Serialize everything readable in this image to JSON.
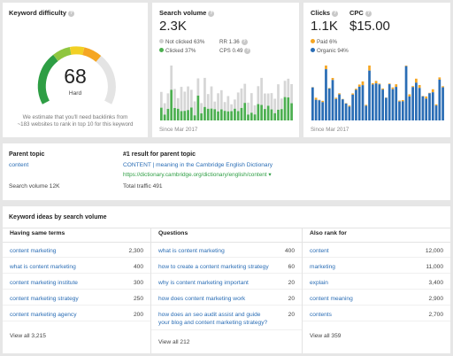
{
  "kd": {
    "title": "Keyword difficulty",
    "value": "68",
    "level": "Hard",
    "score": 68,
    "note_line1": "We estimate that you'll need backlinks from",
    "note_line2": "~183 websites to rank in top 10 for this keyword"
  },
  "sv": {
    "title": "Search volume",
    "value": "2.3K",
    "legend": [
      "Not clicked 63%",
      "Clicked 37%"
    ],
    "rr": "RR 1.36",
    "cps": "CPS 0.49",
    "since": "Since Mar 2017",
    "colors": {
      "clicked": "#4caf50",
      "not_clicked": "#d6d6d6"
    }
  },
  "clicks": {
    "title": "Clicks",
    "value": "1.1K",
    "cpc_title": "CPC",
    "cpc_value": "$15.00",
    "legend": [
      "Paid 6%",
      "Organic 94%"
    ],
    "since": "Since Mar 2017",
    "colors": {
      "paid": "#f5a623",
      "organic": "#2a6db5"
    }
  },
  "parent": {
    "title": "Parent topic",
    "topic": "content",
    "volume": "Search volume 12K",
    "result_title": "#1 result for parent topic",
    "result_link": "CONTENT | meaning in the Cambridge English Dictionary",
    "result_url": "https://dictionary.cambridge.org/dictionary/english/content ▾",
    "traffic": "Total traffic 491"
  },
  "ideas": {
    "title": "Keyword ideas by search volume",
    "same": {
      "header": "Having same terms",
      "rows": [
        {
          "k": "content marketing",
          "v": "2,300"
        },
        {
          "k": "what is content marketing",
          "v": "400"
        },
        {
          "k": "content marketing institute",
          "v": "300"
        },
        {
          "k": "content marketing strategy",
          "v": "250"
        },
        {
          "k": "content marketing agency",
          "v": "200"
        }
      ],
      "view_all": "View all 3,215"
    },
    "questions": {
      "header": "Questions",
      "rows": [
        {
          "k": "what is content marketing",
          "v": "400"
        },
        {
          "k": "how to create a content marketing strategy",
          "v": "60"
        },
        {
          "k": "why is content marketing important",
          "v": "20"
        },
        {
          "k": "how does content marketing work",
          "v": "20"
        },
        {
          "k": "how does an seo audit assist and guide",
          "k2": "your blog and content marketing strategy?",
          "v": "20"
        }
      ],
      "view_all": "View all 212"
    },
    "also": {
      "header": "Also rank for",
      "rows": [
        {
          "k": "content",
          "v": "12,000"
        },
        {
          "k": "marketing",
          "v": "11,000"
        },
        {
          "k": "explain",
          "v": "3,400"
        },
        {
          "k": "content meaning",
          "v": "2,900"
        },
        {
          "k": "contents",
          "v": "2,700"
        }
      ],
      "view_all": "View all 359"
    }
  }
}
